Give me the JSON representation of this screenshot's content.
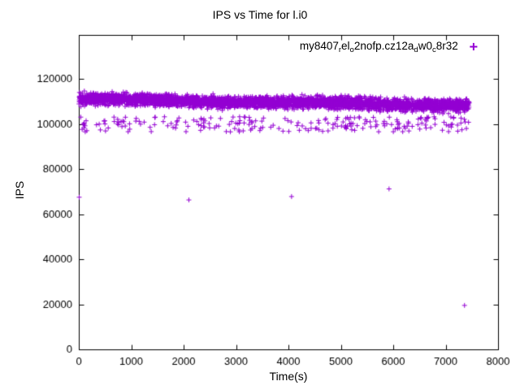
{
  "chart_data": {
    "type": "scatter",
    "title": "IPS vs Time for l.i0",
    "xlabel": "Time(s)",
    "ylabel": "IPS",
    "xlim": [
      0,
      8000
    ],
    "ylim": [
      0,
      139500
    ],
    "x_ticks": [
      0,
      1000,
      2000,
      3000,
      4000,
      5000,
      6000,
      7000,
      8000
    ],
    "y_ticks": [
      0,
      20000,
      40000,
      60000,
      80000,
      100000,
      120000
    ],
    "grid": false,
    "legend_position": "top-right-inside",
    "series": [
      {
        "name": "my8407_rel_o2nofp.cz12a_dw0_c8r32",
        "label_segments": [
          {
            "text": "my8407"
          },
          {
            "text": "r",
            "sub": true
          },
          {
            "text": "el"
          },
          {
            "text": "o",
            "sub": true
          },
          {
            "text": "2nofp.cz12a"
          },
          {
            "text": "d",
            "sub": true
          },
          {
            "text": "w0"
          },
          {
            "text": "c",
            "sub": true
          },
          {
            "text": "8r32"
          }
        ],
        "marker": "plus",
        "color": "#9400d3",
        "bands": [
          {
            "description": "dense main band, slight downward drift",
            "x_min": 0,
            "x_max": 7450,
            "y_center_start": 110900,
            "y_center_end": 108300,
            "y_spread": 2600,
            "count": 3600
          },
          {
            "description": "sparse lower band",
            "x_min": 20,
            "x_max": 7450,
            "y_min": 96500,
            "y_max": 103200,
            "count": 230
          }
        ],
        "outliers": [
          [
            8,
            67500
          ],
          [
            2100,
            66300
          ],
          [
            4060,
            67800
          ],
          [
            5920,
            71200
          ],
          [
            7360,
            19500
          ]
        ]
      }
    ]
  }
}
